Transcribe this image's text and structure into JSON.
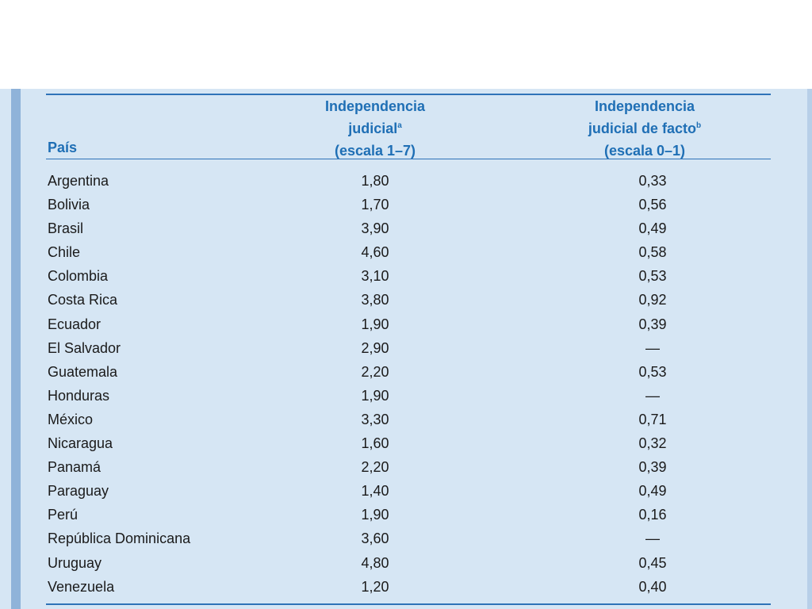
{
  "table": {
    "headers": {
      "country": "País",
      "col1": {
        "line1": "Independencia",
        "line2": "judicial",
        "footnote": "a",
        "line3": "(escala 1–7)"
      },
      "col2": {
        "line1": "Independencia",
        "line2": "judicial de facto",
        "footnote": "b",
        "line3": "(escala 0–1)"
      }
    },
    "rows": [
      {
        "country": "Argentina",
        "judicial": "1,80",
        "de_facto": "0,33"
      },
      {
        "country": "Bolivia",
        "judicial": "1,70",
        "de_facto": "0,56"
      },
      {
        "country": "Brasil",
        "judicial": "3,90",
        "de_facto": "0,49"
      },
      {
        "country": "Chile",
        "judicial": "4,60",
        "de_facto": "0,58"
      },
      {
        "country": "Colombia",
        "judicial": "3,10",
        "de_facto": "0,53"
      },
      {
        "country": "Costa Rica",
        "judicial": "3,80",
        "de_facto": "0,92"
      },
      {
        "country": "Ecuador",
        "judicial": "1,90",
        "de_facto": "0,39"
      },
      {
        "country": "El Salvador",
        "judicial": "2,90",
        "de_facto": "—"
      },
      {
        "country": "Guatemala",
        "judicial": "2,20",
        "de_facto": "0,53"
      },
      {
        "country": "Honduras",
        "judicial": "1,90",
        "de_facto": "—"
      },
      {
        "country": "México",
        "judicial": "3,30",
        "de_facto": "0,71"
      },
      {
        "country": "Nicaragua",
        "judicial": "1,60",
        "de_facto": "0,32"
      },
      {
        "country": "Panamá",
        "judicial": "2,20",
        "de_facto": "0,39"
      },
      {
        "country": "Paraguay",
        "judicial": "1,40",
        "de_facto": "0,49"
      },
      {
        "country": "Perú",
        "judicial": "1,90",
        "de_facto": "0,16"
      },
      {
        "country": "República Dominicana",
        "judicial": "3,60",
        "de_facto": "—"
      },
      {
        "country": "Uruguay",
        "judicial": "4,80",
        "de_facto": "0,45"
      },
      {
        "country": "Venezuela",
        "judicial": "1,20",
        "de_facto": "0,40"
      }
    ]
  },
  "colors": {
    "header_text": "#1f6fb5",
    "rule": "#2f73b8",
    "panel_bg": "#d6e6f4",
    "body_text": "#1a1a1a"
  }
}
